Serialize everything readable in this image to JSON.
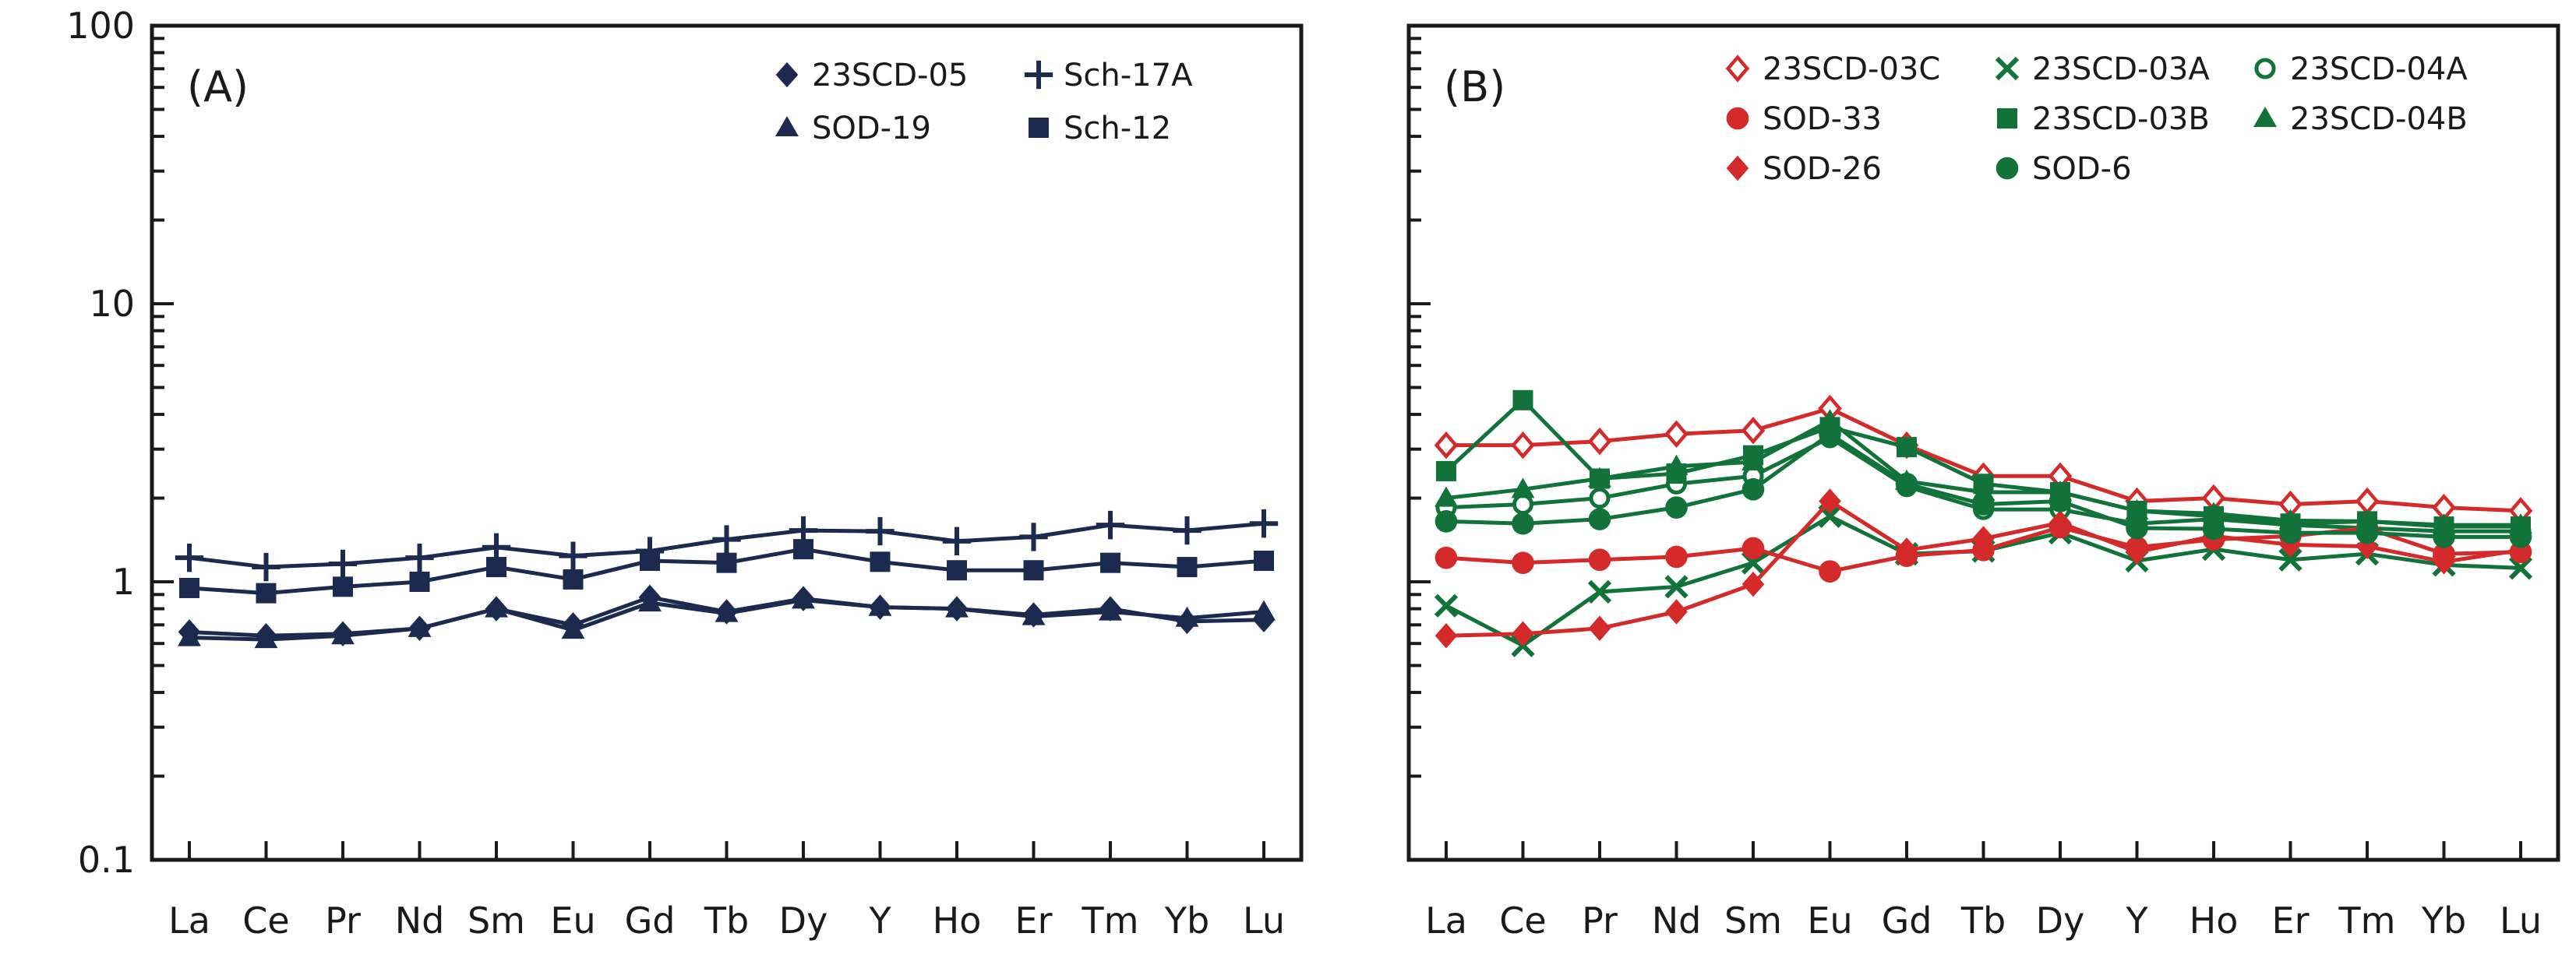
{
  "chart_data": [
    {
      "type": "line",
      "panel_label": "(A)",
      "yscale": "log",
      "ylim": [
        0.1,
        100
      ],
      "y_tick_labels": [
        "0.1",
        "1",
        "10",
        "100"
      ],
      "categories": [
        "La",
        "Ce",
        "Pr",
        "Nd",
        "Sm",
        "Eu",
        "Gd",
        "Tb",
        "Dy",
        "Y",
        "Ho",
        "Er",
        "Tm",
        "Yb",
        "Lu"
      ],
      "legend_position": "top-right",
      "series": [
        {
          "name": "23SCD-05",
          "marker": "diamond",
          "color": "#1b2a4e",
          "values": [
            0.66,
            0.64,
            0.65,
            0.68,
            0.8,
            0.7,
            0.88,
            0.78,
            0.87,
            0.81,
            0.8,
            0.76,
            0.8,
            0.72,
            0.73
          ]
        },
        {
          "name": "Sch-17A",
          "marker": "plus",
          "color": "#1b2a4e",
          "values": [
            1.22,
            1.13,
            1.16,
            1.22,
            1.33,
            1.24,
            1.29,
            1.42,
            1.53,
            1.52,
            1.4,
            1.45,
            1.6,
            1.53,
            1.62
          ]
        },
        {
          "name": "SOD-19",
          "marker": "triangle",
          "color": "#1b2a4e",
          "values": [
            0.63,
            0.62,
            0.64,
            0.68,
            0.8,
            0.67,
            0.84,
            0.77,
            0.86,
            0.81,
            0.8,
            0.75,
            0.78,
            0.74,
            0.78
          ]
        },
        {
          "name": "Sch-12",
          "marker": "square",
          "color": "#1b2a4e",
          "values": [
            0.95,
            0.91,
            0.96,
            1.0,
            1.13,
            1.02,
            1.19,
            1.17,
            1.31,
            1.18,
            1.1,
            1.1,
            1.17,
            1.13,
            1.19
          ]
        }
      ]
    },
    {
      "type": "line",
      "panel_label": "(B)",
      "yscale": "log",
      "ylim": [
        0.1,
        100
      ],
      "categories": [
        "La",
        "Ce",
        "Pr",
        "Nd",
        "Sm",
        "Eu",
        "Gd",
        "Tb",
        "Dy",
        "Y",
        "Ho",
        "Er",
        "Tm",
        "Yb",
        "Lu"
      ],
      "legend_position": "top",
      "series": [
        {
          "name": "23SCD-03C",
          "marker": "diamond-open",
          "color": "#d42a2a",
          "values": [
            3.1,
            3.1,
            3.2,
            3.4,
            3.5,
            4.2,
            3.1,
            2.4,
            2.4,
            1.95,
            2.0,
            1.9,
            1.95,
            1.85,
            1.8
          ]
        },
        {
          "name": "23SCD-03A",
          "marker": "x",
          "color": "#12733a",
          "values": [
            0.82,
            0.59,
            0.92,
            0.96,
            1.17,
            1.72,
            1.26,
            1.29,
            1.5,
            1.19,
            1.31,
            1.2,
            1.26,
            1.15,
            1.12
          ]
        },
        {
          "name": "23SCD-04A",
          "marker": "circle-open",
          "color": "#12733a",
          "values": [
            1.85,
            1.9,
            2.0,
            2.25,
            2.4,
            3.3,
            2.2,
            1.82,
            1.82,
            1.62,
            1.68,
            1.6,
            1.56,
            1.52,
            1.52
          ]
        },
        {
          "name": "SOD-33",
          "marker": "circle",
          "color": "#d42a2a",
          "values": [
            1.22,
            1.17,
            1.2,
            1.23,
            1.32,
            1.09,
            1.24,
            1.3,
            1.57,
            1.33,
            1.42,
            1.46,
            1.56,
            1.26,
            1.28
          ]
        },
        {
          "name": "23SCD-03B",
          "marker": "square",
          "color": "#12733a",
          "values": [
            2.5,
            4.5,
            2.35,
            2.45,
            2.85,
            3.6,
            3.05,
            2.25,
            2.1,
            1.8,
            1.72,
            1.62,
            1.65,
            1.58,
            1.58
          ]
        },
        {
          "name": "23SCD-04B",
          "marker": "triangle",
          "color": "#12733a",
          "values": [
            2.0,
            2.15,
            2.35,
            2.6,
            2.7,
            3.8,
            2.3,
            2.1,
            2.1,
            1.8,
            1.76,
            1.66,
            1.65,
            1.6,
            1.6
          ]
        },
        {
          "name": "SOD-26",
          "marker": "diamond",
          "color": "#d42a2a",
          "values": [
            0.64,
            0.65,
            0.68,
            0.78,
            0.98,
            1.95,
            1.3,
            1.43,
            1.63,
            1.28,
            1.46,
            1.36,
            1.34,
            1.18,
            1.3
          ]
        },
        {
          "name": "SOD-6",
          "marker": "circle",
          "color": "#12733a",
          "values": [
            1.65,
            1.62,
            1.68,
            1.85,
            2.15,
            3.4,
            2.25,
            1.9,
            1.95,
            1.56,
            1.55,
            1.5,
            1.5,
            1.45,
            1.45
          ]
        }
      ]
    }
  ]
}
